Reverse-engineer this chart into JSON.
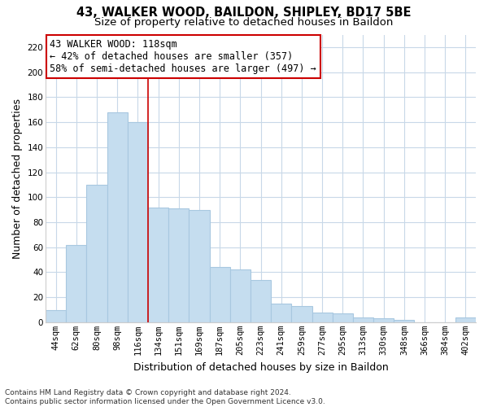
{
  "title": "43, WALKER WOOD, BAILDON, SHIPLEY, BD17 5BE",
  "subtitle": "Size of property relative to detached houses in Baildon",
  "xlabel": "Distribution of detached houses by size in Baildon",
  "ylabel": "Number of detached properties",
  "bar_labels": [
    "44sqm",
    "62sqm",
    "80sqm",
    "98sqm",
    "116sqm",
    "134sqm",
    "151sqm",
    "169sqm",
    "187sqm",
    "205sqm",
    "223sqm",
    "241sqm",
    "259sqm",
    "277sqm",
    "295sqm",
    "313sqm",
    "330sqm",
    "348sqm",
    "366sqm",
    "384sqm",
    "402sqm"
  ],
  "bar_values": [
    10,
    62,
    110,
    168,
    160,
    92,
    91,
    90,
    44,
    42,
    34,
    15,
    13,
    8,
    7,
    4,
    3,
    2,
    0,
    0,
    4
  ],
  "bar_color": "#c5ddef",
  "bar_edge_color": "#a8c8e0",
  "marker_index": 4,
  "marker_color": "#cc0000",
  "ylim": [
    0,
    230
  ],
  "yticks": [
    0,
    20,
    40,
    60,
    80,
    100,
    120,
    140,
    160,
    180,
    200,
    220
  ],
  "annotation_box_text": "43 WALKER WOOD: 118sqm\n← 42% of detached houses are smaller (357)\n58% of semi-detached houses are larger (497) →",
  "annotation_box_color": "#ffffff",
  "annotation_box_edge_color": "#cc0000",
  "footer_line1": "Contains HM Land Registry data © Crown copyright and database right 2024.",
  "footer_line2": "Contains public sector information licensed under the Open Government Licence v3.0.",
  "background_color": "#ffffff",
  "grid_color": "#c8d8e8",
  "title_fontsize": 10.5,
  "subtitle_fontsize": 9.5,
  "xlabel_fontsize": 9,
  "ylabel_fontsize": 9,
  "tick_fontsize": 7.5,
  "annotation_fontsize": 8.5,
  "footer_fontsize": 6.5
}
